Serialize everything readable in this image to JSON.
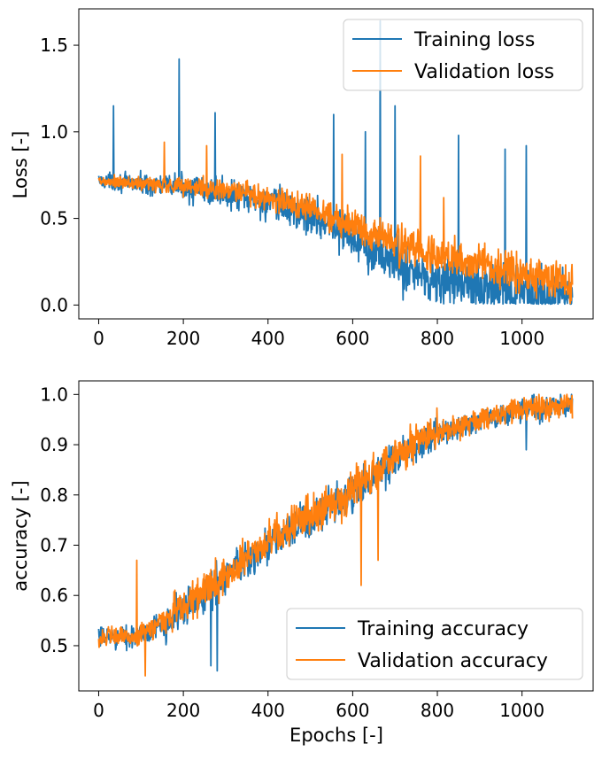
{
  "chart_data": [
    {
      "type": "line",
      "ylabel": "Loss [-]",
      "xlabel": "",
      "xlim": [
        -47,
        1168
      ],
      "ylim": [
        -0.08,
        1.71
      ],
      "xticks": [
        0,
        200,
        400,
        600,
        800,
        1000
      ],
      "yticks": [
        0.0,
        0.5,
        1.0,
        1.5
      ],
      "xtick_labels": [
        "0",
        "200",
        "400",
        "600",
        "800",
        "1000"
      ],
      "ytick_labels": [
        "0.0",
        "0.5",
        "1.0",
        "1.5"
      ],
      "legend_position": "top-right",
      "grid": false,
      "x_count": 1120,
      "series": [
        {
          "name": "Training loss",
          "color": "#1f77b4",
          "trend_x": [
            0,
            100,
            200,
            300,
            400,
            500,
            600,
            650,
            700,
            800,
            900,
            1000,
            1120
          ],
          "trend_y": [
            0.72,
            0.7,
            0.68,
            0.64,
            0.59,
            0.52,
            0.4,
            0.33,
            0.24,
            0.14,
            0.1,
            0.06,
            0.04
          ],
          "spikes": [
            {
              "x": 35,
              "y": 1.15
            },
            {
              "x": 190,
              "y": 1.42
            },
            {
              "x": 275,
              "y": 1.11
            },
            {
              "x": 555,
              "y": 1.1
            },
            {
              "x": 630,
              "y": 1.0
            },
            {
              "x": 665,
              "y": 1.64
            },
            {
              "x": 700,
              "y": 1.15
            },
            {
              "x": 850,
              "y": 0.98
            },
            {
              "x": 960,
              "y": 0.9
            },
            {
              "x": 1010,
              "y": 0.92
            }
          ]
        },
        {
          "name": "Validation loss",
          "color": "#ff7f0e",
          "trend_x": [
            0,
            100,
            200,
            300,
            400,
            500,
            600,
            650,
            700,
            800,
            900,
            1000,
            1120
          ],
          "trend_y": [
            0.71,
            0.7,
            0.69,
            0.66,
            0.62,
            0.56,
            0.47,
            0.42,
            0.36,
            0.28,
            0.24,
            0.19,
            0.12
          ],
          "spikes": [
            {
              "x": 155,
              "y": 0.94
            },
            {
              "x": 255,
              "y": 0.92
            },
            {
              "x": 575,
              "y": 0.87
            },
            {
              "x": 760,
              "y": 0.86
            },
            {
              "x": 815,
              "y": 0.62
            }
          ]
        }
      ]
    },
    {
      "type": "line",
      "ylabel": "accuracy [-]",
      "xlabel": "Epochs [-]",
      "xlim": [
        -47,
        1168
      ],
      "ylim": [
        0.41,
        1.027
      ],
      "xticks": [
        0,
        200,
        400,
        600,
        800,
        1000
      ],
      "yticks": [
        0.5,
        0.6,
        0.7,
        0.8,
        0.9,
        1.0
      ],
      "xtick_labels": [
        "0",
        "200",
        "400",
        "600",
        "800",
        "1000"
      ],
      "ytick_labels": [
        "0.5",
        "0.6",
        "0.7",
        "0.8",
        "0.9",
        "1.0"
      ],
      "legend_position": "bottom-right",
      "grid": false,
      "x_count": 1120,
      "series": [
        {
          "name": "Training accuracy",
          "color": "#1f77b4",
          "trend_x": [
            0,
            100,
            200,
            300,
            400,
            500,
            600,
            700,
            800,
            900,
            1000,
            1120
          ],
          "trend_y": [
            0.515,
            0.52,
            0.57,
            0.64,
            0.7,
            0.75,
            0.8,
            0.87,
            0.92,
            0.95,
            0.97,
            0.98
          ],
          "spikes": [
            {
              "x": 280,
              "y": 0.45
            },
            {
              "x": 265,
              "y": 0.46
            },
            {
              "x": 1010,
              "y": 0.89
            }
          ]
        },
        {
          "name": "Validation accuracy",
          "color": "#ff7f0e",
          "trend_x": [
            0,
            100,
            200,
            300,
            400,
            500,
            600,
            700,
            800,
            900,
            1000,
            1120
          ],
          "trend_y": [
            0.515,
            0.52,
            0.58,
            0.64,
            0.71,
            0.76,
            0.81,
            0.88,
            0.92,
            0.95,
            0.97,
            0.98
          ],
          "spikes": [
            {
              "x": 90,
              "y": 0.67
            },
            {
              "x": 110,
              "y": 0.44
            },
            {
              "x": 620,
              "y": 0.62
            },
            {
              "x": 660,
              "y": 0.67
            },
            {
              "x": 590,
              "y": 0.83
            }
          ]
        }
      ]
    }
  ]
}
